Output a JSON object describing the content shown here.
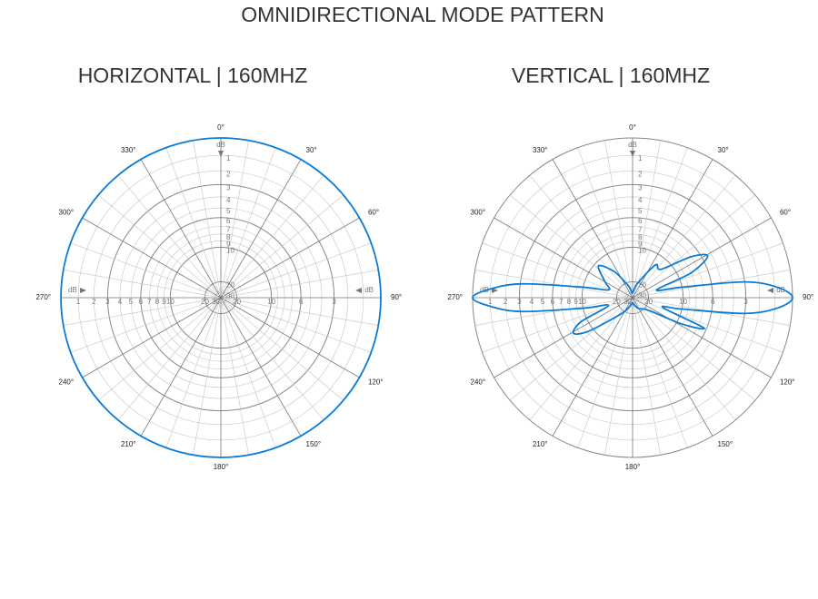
{
  "title": "OMNIDIRECTIONAL MODE PATTERN",
  "chart_data": [
    {
      "type": "polar",
      "title": "HORIZONTAL | 160MHZ",
      "color": "#0a7bd6",
      "rscale": "amplitude",
      "r_unit": "dB",
      "grid": true,
      "theta": [
        0,
        15,
        30,
        45,
        60,
        75,
        90,
        105,
        120,
        135,
        150,
        165,
        180,
        195,
        210,
        225,
        240,
        255,
        270,
        285,
        300,
        315,
        330,
        345
      ],
      "values": [
        0,
        0,
        0,
        0,
        0,
        0,
        0,
        0,
        0,
        0,
        0,
        0,
        0,
        0,
        0,
        0,
        0,
        0,
        0,
        0,
        0,
        0,
        0,
        0
      ],
      "rticks": [
        1,
        2,
        3,
        4,
        5,
        6,
        7,
        8,
        9,
        10,
        20,
        30
      ],
      "major_rticks": [
        3,
        6,
        10,
        20
      ],
      "theta_ticks": [
        {
          "value": 0,
          "label": "0°"
        },
        {
          "value": 30,
          "label": "30°"
        },
        {
          "value": 60,
          "label": "60°"
        },
        {
          "value": 90,
          "label": "90°"
        },
        {
          "value": 120,
          "label": "120°"
        },
        {
          "value": 150,
          "label": "150°"
        },
        {
          "value": 180,
          "label": "180°"
        },
        {
          "value": 210,
          "label": "210°"
        },
        {
          "value": 240,
          "label": "240°"
        },
        {
          "value": 270,
          "label": "270°"
        },
        {
          "value": 300,
          "label": "300°"
        },
        {
          "value": 330,
          "label": "330°"
        }
      ],
      "theta_minor": [
        10,
        20,
        40,
        50,
        70,
        80,
        100,
        110,
        130,
        140,
        160,
        170,
        190,
        200,
        220,
        230,
        250,
        260,
        280,
        290,
        310,
        320,
        340,
        350
      ]
    },
    {
      "type": "polar",
      "title": "VERTICAL | 160MHZ",
      "color": "#0a7bd6",
      "rscale": "amplitude",
      "r_unit": "dB",
      "grid": true,
      "theta": [
        0,
        20,
        35,
        45,
        55,
        61,
        67,
        72,
        78,
        82,
        86,
        90,
        94,
        98,
        103,
        108,
        113,
        118,
        125,
        135,
        150,
        165,
        180,
        195,
        210,
        225,
        233,
        239,
        245,
        252,
        258,
        263,
        267,
        270,
        273,
        277,
        282,
        288,
        300,
        313,
        325,
        340,
        350
      ],
      "values": [
        30,
        20,
        12,
        12,
        7,
        5.4,
        8,
        16,
        10,
        3,
        0.8,
        0,
        0.8,
        3,
        10,
        14,
        6.3,
        9,
        16,
        20,
        22,
        26,
        30,
        26,
        20,
        14,
        9,
        7.3,
        9,
        16,
        10,
        3,
        0.8,
        0,
        0.8,
        3,
        10,
        16,
        14,
        10.7,
        14,
        22,
        28
      ],
      "rticks": [
        1,
        2,
        3,
        4,
        5,
        6,
        7,
        8,
        9,
        10,
        20,
        30
      ],
      "major_rticks": [
        3,
        6,
        10,
        20
      ],
      "theta_ticks": [
        {
          "value": 0,
          "label": "0°"
        },
        {
          "value": 30,
          "label": "30°"
        },
        {
          "value": 60,
          "label": "60°"
        },
        {
          "value": 90,
          "label": "90°"
        },
        {
          "value": 120,
          "label": "120°"
        },
        {
          "value": 150,
          "label": "150°"
        },
        {
          "value": 180,
          "label": "180°"
        },
        {
          "value": 210,
          "label": "210°"
        },
        {
          "value": 240,
          "label": "240°"
        },
        {
          "value": 270,
          "label": "270°"
        },
        {
          "value": 300,
          "label": "300°"
        },
        {
          "value": 330,
          "label": "330°"
        }
      ],
      "theta_minor": [
        10,
        20,
        40,
        50,
        70,
        80,
        100,
        110,
        130,
        140,
        160,
        170,
        190,
        200,
        220,
        230,
        250,
        260,
        280,
        290,
        310,
        320,
        340,
        350
      ]
    }
  ]
}
